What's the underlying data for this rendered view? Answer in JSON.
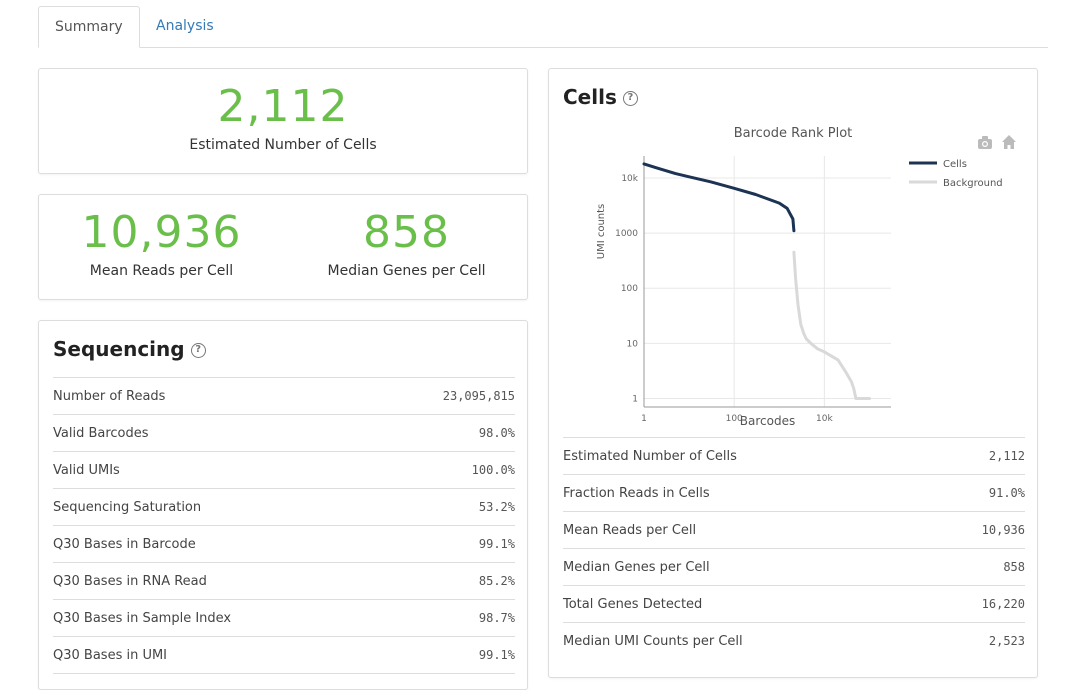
{
  "tabs": [
    {
      "label": "Summary"
    },
    {
      "label": "Analysis"
    }
  ],
  "hero": {
    "cells_value": "2,112",
    "cells_label": "Estimated Number of Cells",
    "reads_value": "10,936",
    "reads_label": "Mean Reads per Cell",
    "genes_value": "858",
    "genes_label": "Median Genes per Cell"
  },
  "sequencing": {
    "title": "Sequencing",
    "help": "?",
    "rows": [
      {
        "label": "Number of Reads",
        "value": "23,095,815"
      },
      {
        "label": "Valid Barcodes",
        "value": "98.0%"
      },
      {
        "label": "Valid UMIs",
        "value": "100.0%"
      },
      {
        "label": "Sequencing Saturation",
        "value": "53.2%"
      },
      {
        "label": "Q30 Bases in Barcode",
        "value": "99.1%"
      },
      {
        "label": "Q30 Bases in RNA Read",
        "value": "85.2%"
      },
      {
        "label": "Q30 Bases in Sample Index",
        "value": "98.7%"
      },
      {
        "label": "Q30 Bases in UMI",
        "value": "99.1%"
      }
    ]
  },
  "cells": {
    "title": "Cells",
    "help": "?",
    "rows": [
      {
        "label": "Estimated Number of Cells",
        "value": "2,112"
      },
      {
        "label": "Fraction Reads in Cells",
        "value": "91.0%"
      },
      {
        "label": "Mean Reads per Cell",
        "value": "10,936"
      },
      {
        "label": "Median Genes per Cell",
        "value": "858"
      },
      {
        "label": "Total Genes Detected",
        "value": "16,220"
      },
      {
        "label": "Median UMI Counts per Cell",
        "value": "2,523"
      }
    ]
  },
  "colors": {
    "accent_green": "#6abf4b",
    "link_blue": "#337ab7",
    "cells_series": "#1c3353",
    "background_series": "#d9d9d9"
  },
  "chart_data": {
    "type": "line",
    "title": "Barcode Rank Plot",
    "xlabel": "Barcodes",
    "ylabel": "UMI counts",
    "xscale": "log",
    "yscale": "log",
    "xlim": [
      1,
      300000
    ],
    "ylim": [
      0.7,
      25000
    ],
    "xticks": [
      "1",
      "100",
      "10k"
    ],
    "yticks": [
      "1",
      "10",
      "100",
      "1000",
      "10k"
    ],
    "legend": "top-right",
    "series": [
      {
        "name": "Cells",
        "color": "#1c3353",
        "x": [
          1,
          2,
          5,
          10,
          30,
          100,
          300,
          1000,
          1500,
          2000,
          2112
        ],
        "y": [
          18000,
          15000,
          12000,
          10500,
          8500,
          6500,
          5000,
          3500,
          2800,
          1800,
          1100
        ]
      },
      {
        "name": "Background",
        "color": "#d9d9d9",
        "x": [
          2112,
          2300,
          2600,
          3000,
          3500,
          4000,
          5000,
          7000,
          10000,
          20000,
          30000,
          40000,
          45000,
          50000,
          100000
        ],
        "y": [
          450,
          150,
          50,
          22,
          15,
          12,
          10,
          8,
          7,
          5,
          3,
          2,
          1.5,
          1,
          1
        ]
      }
    ],
    "toolbar_icons": [
      "camera-icon",
      "home-icon"
    ]
  }
}
